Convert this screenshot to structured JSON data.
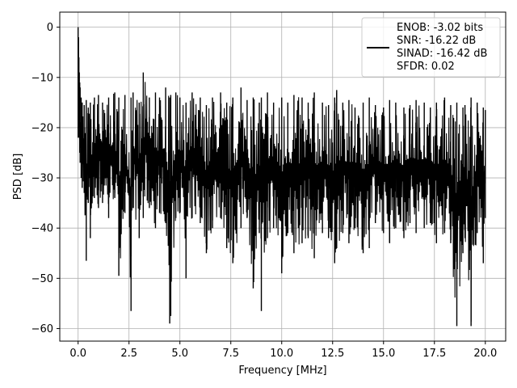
{
  "chart_data": {
    "type": "line",
    "xlabel": "Frequency [MHz]",
    "ylabel": "PSD [dB]",
    "xlim": [
      -0.9,
      21.0
    ],
    "ylim": [
      -62.5,
      3.0
    ],
    "xticks": [
      0.0,
      2.5,
      5.0,
      7.5,
      10.0,
      12.5,
      15.0,
      17.5,
      20.0
    ],
    "xtick_labels": [
      "0.0",
      "2.5",
      "5.0",
      "7.5",
      "10.0",
      "12.5",
      "15.0",
      "17.5",
      "20.0"
    ],
    "yticks": [
      0,
      -10,
      -20,
      -30,
      -40,
      -50,
      -60
    ],
    "ytick_labels": [
      "0",
      "−10",
      "−20",
      "−30",
      "−40",
      "−50",
      "−60"
    ],
    "grid": true,
    "legend_position": "top-right",
    "legend_lines": [
      "ENOB: -3.02 bits",
      "SNR: -16.22 dB",
      "SINAD: -16.42 dB",
      "SFDR: 0.02"
    ],
    "series_color": "#000000",
    "grid_color": "#b0b0b0",
    "series": [
      {
        "x": [
          0.0,
          0.02,
          0.04,
          0.06,
          0.08,
          0.1,
          0.15,
          0.2,
          0.3,
          0.4,
          0.5,
          0.6,
          0.8,
          1.0,
          1.2,
          1.5,
          1.8,
          2.0,
          2.3,
          2.6,
          2.7,
          3.0,
          3.2,
          3.5,
          3.8,
          4.0,
          4.3,
          4.5,
          4.55,
          4.8,
          5.0,
          5.3,
          5.6,
          6.0,
          6.3,
          6.6,
          7.0,
          7.3,
          7.6,
          8.0,
          8.3,
          8.6,
          8.9,
          9.0,
          9.3,
          9.6,
          10.0,
          10.3,
          10.6,
          11.0,
          11.3,
          11.6,
          12.0,
          12.3,
          12.6,
          12.7,
          13.0,
          13.3,
          13.6,
          14.0,
          14.3,
          14.6,
          15.0,
          15.3,
          15.6,
          16.0,
          16.3,
          16.6,
          17.0,
          17.3,
          17.6,
          18.0,
          18.3,
          18.6,
          18.9,
          19.0,
          19.3,
          19.6,
          19.9,
          20.0
        ],
        "y_upper": [
          0.0,
          -2.0,
          -6.0,
          -9.0,
          -11.0,
          -12.0,
          -14.0,
          -15.0,
          -15.5,
          -14.5,
          -16.0,
          -15.0,
          -14.0,
          -13.5,
          -15.0,
          -14.0,
          -13.0,
          -14.0,
          -13.5,
          -14.0,
          -13.0,
          -15.0,
          -9.0,
          -14.0,
          -13.0,
          -14.0,
          -12.0,
          -14.0,
          -13.5,
          -13.0,
          -14.0,
          -15.0,
          -13.0,
          -14.0,
          -15.5,
          -14.0,
          -13.0,
          -15.0,
          -14.0,
          -12.0,
          -14.5,
          -14.0,
          -15.0,
          -14.0,
          -13.0,
          -15.0,
          -14.0,
          -15.0,
          -13.5,
          -14.0,
          -15.0,
          -13.0,
          -15.0,
          -15.5,
          -14.0,
          -12.5,
          -15.0,
          -14.5,
          -16.0,
          -15.0,
          -14.0,
          -15.5,
          -16.0,
          -14.5,
          -15.0,
          -16.0,
          -15.5,
          -14.5,
          -15.0,
          -16.0,
          -15.0,
          -14.0,
          -15.5,
          -15.0,
          -16.0,
          -15.5,
          -14.0,
          -15.0,
          -16.0,
          -16.5
        ],
        "y_lower": [
          -22.0,
          -18.0,
          -20.0,
          -22.0,
          -25.0,
          -27.0,
          -30.0,
          -32.0,
          -33.0,
          -46.5,
          -35.0,
          -42.0,
          -34.0,
          -36.0,
          -35.0,
          -38.0,
          -34.0,
          -49.5,
          -37.0,
          -56.5,
          -36.0,
          -42.0,
          -38.0,
          -36.0,
          -40.0,
          -37.0,
          -39.0,
          -59.0,
          -57.5,
          -38.0,
          -37.0,
          -50.0,
          -38.0,
          -39.0,
          -45.0,
          -40.0,
          -38.0,
          -44.0,
          -47.0,
          -40.0,
          -38.0,
          -52.0,
          -41.0,
          -56.5,
          -42.0,
          -40.0,
          -49.0,
          -41.0,
          -45.0,
          -43.0,
          -42.0,
          -46.0,
          -41.0,
          -42.0,
          -47.0,
          -44.0,
          -41.0,
          -43.0,
          -40.0,
          -45.0,
          -44.0,
          -39.0,
          -41.0,
          -43.0,
          -40.0,
          -42.0,
          -39.0,
          -41.0,
          -40.0,
          -39.0,
          -43.0,
          -41.0,
          -43.0,
          -59.5,
          -45.0,
          -42.0,
          -59.5,
          -41.0,
          -47.0,
          -38.0
        ]
      }
    ]
  }
}
